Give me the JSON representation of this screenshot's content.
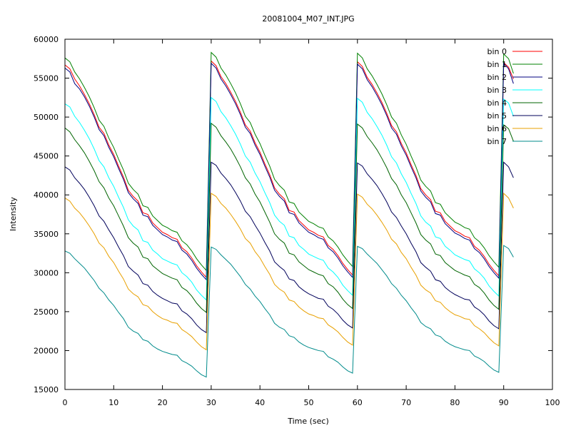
{
  "chart_data": {
    "type": "line",
    "title": "20081004_M07_INT.JPG",
    "xlabel": "Time (sec)",
    "ylabel": "Intensity",
    "xlim": [
      0,
      100
    ],
    "ylim": [
      15000,
      60000
    ],
    "xticks": [
      0,
      10,
      20,
      30,
      40,
      50,
      60,
      70,
      80,
      90,
      100
    ],
    "yticks": [
      15000,
      20000,
      25000,
      30000,
      35000,
      40000,
      45000,
      50000,
      55000,
      60000
    ],
    "grid": false,
    "legend_position": "top-right",
    "x": [
      0,
      1,
      2,
      3,
      4,
      5,
      6,
      7,
      8,
      9,
      10,
      11,
      12,
      13,
      14,
      15,
      16,
      17,
      18,
      19,
      20,
      21,
      22,
      23,
      24,
      25,
      26,
      27,
      28,
      29,
      30,
      31,
      32,
      33,
      34,
      35,
      36,
      37,
      38,
      39,
      40,
      41,
      42,
      43,
      44,
      45,
      46,
      47,
      48,
      49,
      50,
      51,
      52,
      53,
      54,
      55,
      56,
      57,
      58,
      59,
      60,
      61,
      62,
      63,
      64,
      65,
      66,
      67,
      68,
      69,
      70,
      71,
      72,
      73,
      74,
      75,
      76,
      77,
      78,
      79,
      80,
      81,
      82,
      83,
      84,
      85,
      86,
      87,
      88,
      89,
      90,
      91,
      92
    ],
    "series": [
      {
        "name": "bin 0",
        "color": "#ff0000",
        "values": [
          56700,
          56200,
          54900,
          54000,
          52900,
          51700,
          50300,
          48700,
          47900,
          46400,
          45200,
          43700,
          42300,
          40600,
          39800,
          39200,
          37700,
          37500,
          36400,
          35800,
          35200,
          34900,
          34500,
          34300,
          33200,
          32700,
          31900,
          30900,
          30100,
          29400,
          57200,
          56600,
          55200,
          54300,
          53200,
          52000,
          50600,
          49000,
          48200,
          46700,
          45500,
          44000,
          42600,
          40900,
          40100,
          39500,
          38000,
          37800,
          36700,
          36100,
          35500,
          35200,
          34800,
          34600,
          33500,
          33000,
          32200,
          31200,
          30400,
          29700,
          57100,
          56500,
          55100,
          54200,
          53100,
          51900,
          50500,
          48900,
          48100,
          46600,
          45400,
          43900,
          42500,
          40800,
          40000,
          39400,
          37900,
          37700,
          36600,
          36000,
          35400,
          35100,
          34700,
          34500,
          33400,
          32900,
          32100,
          31100,
          30300,
          29600,
          57000,
          56400,
          54900
        ]
      },
      {
        "name": "bin 1",
        "color": "#008000",
        "values": [
          57600,
          57100,
          55800,
          54900,
          53800,
          52600,
          51200,
          49600,
          48800,
          47300,
          46100,
          44600,
          43200,
          41500,
          40700,
          40100,
          38600,
          38400,
          37300,
          36700,
          36100,
          35800,
          35400,
          35200,
          34100,
          33600,
          32800,
          31800,
          31000,
          30300,
          58300,
          57700,
          56300,
          55400,
          54300,
          53100,
          51700,
          50100,
          49300,
          47800,
          46600,
          45100,
          43700,
          42000,
          41200,
          40600,
          39100,
          38900,
          37800,
          37200,
          36600,
          36300,
          35900,
          35700,
          34600,
          34100,
          33300,
          32300,
          31500,
          30800,
          58200,
          57600,
          56200,
          55300,
          54200,
          53000,
          51600,
          50000,
          49200,
          47700,
          46500,
          45000,
          43600,
          41900,
          41100,
          40500,
          39000,
          38800,
          37700,
          37100,
          36500,
          36200,
          35800,
          35600,
          34500,
          34000,
          33200,
          32200,
          31400,
          30700,
          58100,
          57500,
          55600
        ]
      },
      {
        "name": "bin 2",
        "color": "#000080",
        "values": [
          56300,
          55800,
          54300,
          53600,
          52600,
          51400,
          50000,
          48400,
          47600,
          46100,
          44900,
          43400,
          42000,
          40300,
          39500,
          38900,
          37400,
          37200,
          36100,
          35500,
          34900,
          34600,
          34200,
          34000,
          32900,
          32400,
          31600,
          30600,
          29800,
          29100,
          56900,
          56300,
          54900,
          54000,
          52900,
          51700,
          50300,
          48700,
          47900,
          46400,
          45200,
          43700,
          42300,
          40600,
          39800,
          39200,
          37700,
          37500,
          36400,
          35800,
          35200,
          34900,
          34500,
          34300,
          33200,
          32700,
          31900,
          30900,
          30100,
          29400,
          56800,
          56200,
          54800,
          53900,
          52800,
          51600,
          50200,
          48600,
          47800,
          46300,
          45100,
          43600,
          42200,
          40500,
          39700,
          39100,
          37600,
          37400,
          36300,
          35700,
          35100,
          34800,
          34400,
          34200,
          33100,
          32600,
          31800,
          30800,
          30000,
          29300,
          56900,
          56200,
          54300
        ]
      },
      {
        "name": "bin 3",
        "color": "#00ffff",
        "values": [
          51700,
          51300,
          50100,
          49300,
          48300,
          47200,
          45900,
          44400,
          43600,
          42200,
          41100,
          39700,
          38400,
          36800,
          36000,
          35500,
          34100,
          33900,
          32900,
          32400,
          31800,
          31500,
          31200,
          31000,
          30000,
          29500,
          28800,
          27800,
          27100,
          26500,
          52500,
          52000,
          50700,
          49900,
          48900,
          47800,
          46500,
          45000,
          44200,
          42800,
          41700,
          40300,
          39000,
          37400,
          36600,
          36100,
          34700,
          34500,
          33500,
          33000,
          32400,
          32100,
          31800,
          31600,
          30600,
          30100,
          29400,
          28400,
          27700,
          27100,
          52400,
          51900,
          50600,
          49800,
          48800,
          47700,
          46400,
          44900,
          44100,
          42700,
          41600,
          40200,
          38900,
          37300,
          36500,
          36000,
          34600,
          34400,
          33400,
          32900,
          32300,
          32000,
          31700,
          31500,
          30500,
          30000,
          29300,
          28300,
          27600,
          27000,
          52300,
          51800,
          50100
        ]
      },
      {
        "name": "bin 4",
        "color": "#006400",
        "values": [
          48600,
          48100,
          47100,
          46300,
          45400,
          44300,
          43100,
          41700,
          40900,
          39600,
          38600,
          37300,
          36000,
          34500,
          33800,
          33300,
          32000,
          31800,
          30900,
          30400,
          29900,
          29600,
          29300,
          29100,
          28100,
          27700,
          27000,
          26100,
          25400,
          24900,
          49200,
          48700,
          47600,
          46800,
          45900,
          44800,
          43600,
          42200,
          41400,
          40100,
          39100,
          37800,
          36500,
          35000,
          34300,
          33800,
          32500,
          32300,
          31400,
          30900,
          30400,
          30100,
          29800,
          29600,
          28600,
          28200,
          27500,
          26600,
          25900,
          25400,
          49100,
          48600,
          47500,
          46700,
          45800,
          44700,
          43500,
          42100,
          41300,
          40000,
          39000,
          37700,
          36400,
          34900,
          34200,
          33700,
          32400,
          32200,
          31300,
          30800,
          30300,
          30000,
          29700,
          29500,
          28500,
          28100,
          27400,
          26500,
          25800,
          25300,
          49000,
          48500,
          46900
        ]
      },
      {
        "name": "bin 5",
        "color": "#00005a",
        "values": [
          43600,
          43200,
          42200,
          41500,
          40700,
          39700,
          38600,
          37300,
          36600,
          35500,
          34500,
          33300,
          32200,
          30800,
          30200,
          29700,
          28600,
          28400,
          27600,
          27100,
          26700,
          26400,
          26100,
          26000,
          25100,
          24700,
          24100,
          23300,
          22700,
          22300,
          44200,
          43800,
          42800,
          42100,
          41300,
          40300,
          39200,
          37900,
          37200,
          36100,
          35100,
          33900,
          32800,
          31400,
          30800,
          30300,
          29200,
          29000,
          28200,
          27700,
          27300,
          27000,
          26700,
          26600,
          25700,
          25300,
          24700,
          23900,
          23300,
          22900,
          44100,
          43700,
          42700,
          42000,
          41200,
          40200,
          39100,
          37800,
          37100,
          36000,
          35000,
          33800,
          32700,
          31300,
          30700,
          30200,
          29100,
          28900,
          28100,
          27600,
          27200,
          26900,
          26600,
          26500,
          25600,
          25200,
          24600,
          23800,
          23200,
          22800,
          44200,
          43600,
          42200
        ]
      },
      {
        "name": "bin 6",
        "color": "#e8a000",
        "values": [
          39600,
          39200,
          38300,
          37700,
          36900,
          36000,
          35000,
          33800,
          33200,
          32100,
          31300,
          30200,
          29200,
          27900,
          27300,
          26900,
          25900,
          25700,
          25000,
          24500,
          24100,
          23900,
          23600,
          23500,
          22700,
          22300,
          21800,
          21100,
          20500,
          20100,
          40200,
          39800,
          38900,
          38300,
          37500,
          36600,
          35600,
          34400,
          33800,
          32700,
          31900,
          30800,
          29800,
          28500,
          27900,
          27500,
          26500,
          26300,
          25600,
          25100,
          24700,
          24500,
          24200,
          24100,
          23300,
          22900,
          22400,
          21700,
          21100,
          20700,
          40100,
          39700,
          38800,
          38200,
          37400,
          36500,
          35500,
          34300,
          33700,
          32600,
          31800,
          30700,
          29700,
          28400,
          27800,
          27400,
          26400,
          26200,
          25500,
          25000,
          24600,
          24400,
          24100,
          24000,
          23200,
          22800,
          22300,
          21600,
          21000,
          20600,
          40200,
          39600,
          38300
        ]
      },
      {
        "name": "bin 7",
        "color": "#008b8b",
        "values": [
          32800,
          32500,
          31800,
          31200,
          30600,
          29800,
          29000,
          28000,
          27400,
          26500,
          25800,
          24900,
          24100,
          23000,
          22500,
          22200,
          21400,
          21200,
          20600,
          20200,
          19900,
          19700,
          19500,
          19400,
          18700,
          18400,
          18000,
          17400,
          16900,
          16600,
          33300,
          33000,
          32300,
          31700,
          31100,
          30300,
          29500,
          28500,
          27900,
          27000,
          26300,
          25400,
          24600,
          23500,
          23000,
          22700,
          21900,
          21700,
          21100,
          20700,
          20400,
          20200,
          20000,
          19900,
          19200,
          18900,
          18500,
          17900,
          17400,
          17100,
          33400,
          33100,
          32400,
          31800,
          31200,
          30400,
          29600,
          28600,
          28000,
          27100,
          26400,
          25500,
          24700,
          23600,
          23100,
          22800,
          22000,
          21800,
          21200,
          20800,
          20500,
          20300,
          20100,
          20000,
          19300,
          19000,
          18600,
          18000,
          17500,
          17200,
          33500,
          33100,
          32000
        ]
      }
    ]
  }
}
